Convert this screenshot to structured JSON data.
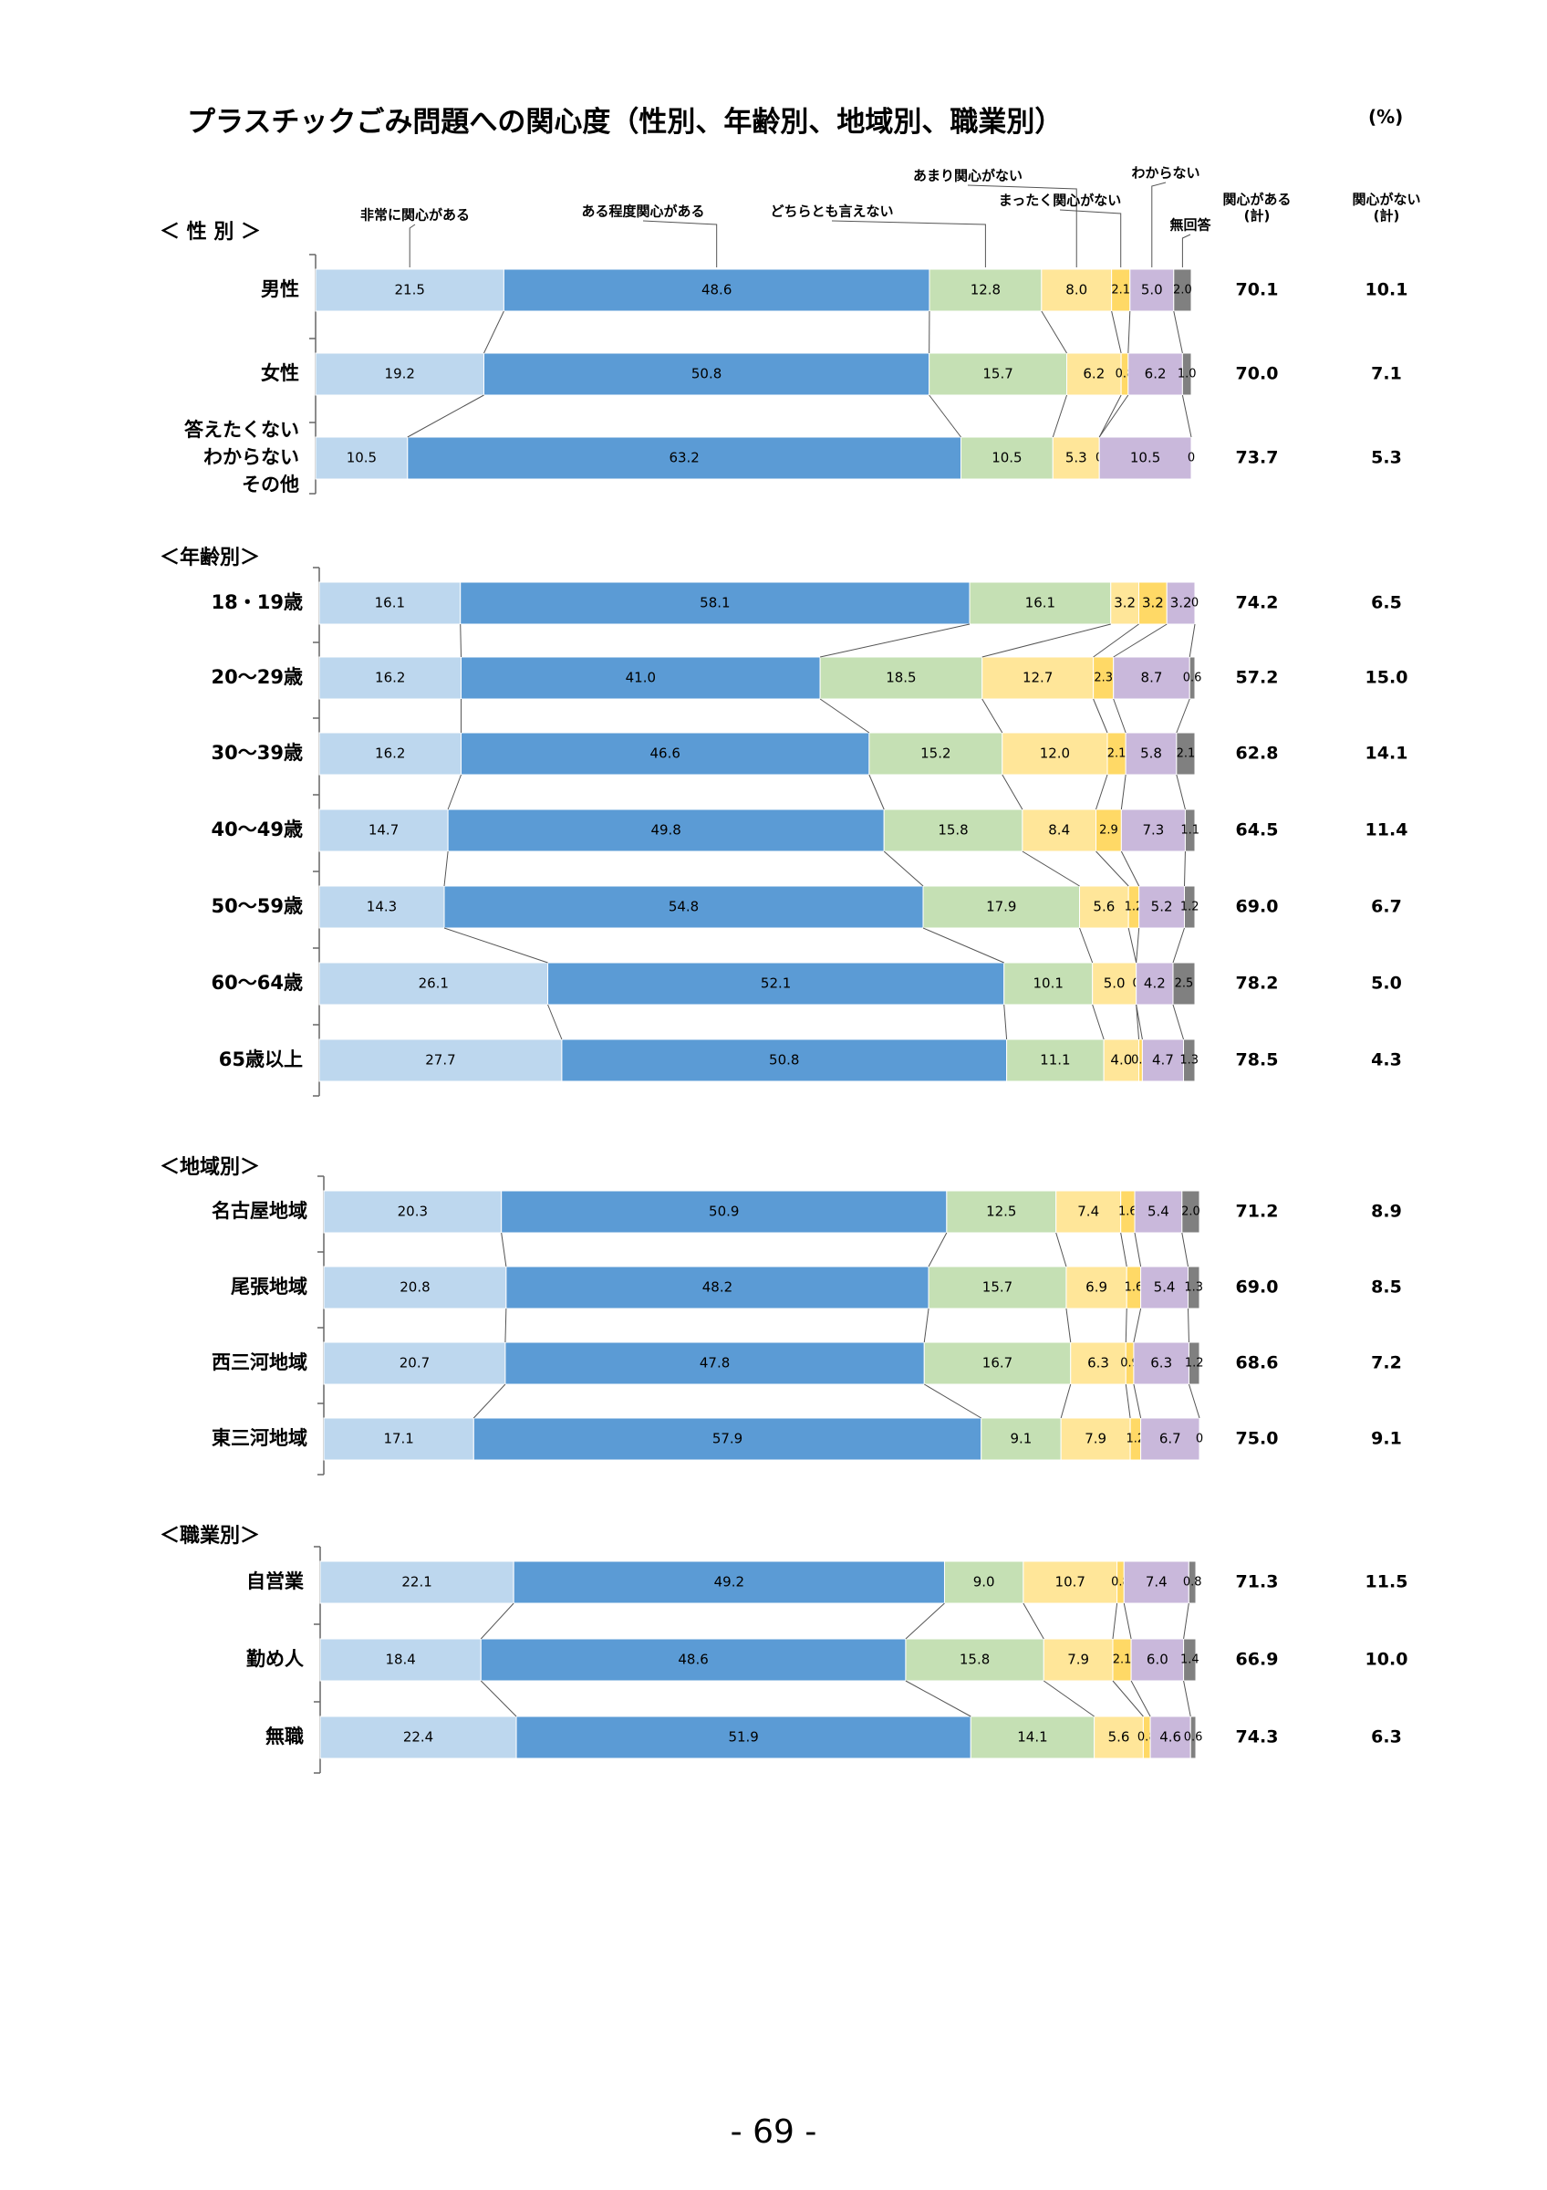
{
  "page": {
    "title": "プラスチックごみ問題への関心度（性別、年齢別、地域別、職業別）",
    "unit": "(%)",
    "page_number": "- 69 -"
  },
  "chart_data": {
    "type": "bar",
    "orientation": "horizontal",
    "stacked": true,
    "percent_scale": [
      0,
      100
    ],
    "categories_legend": [
      "非常に関心がある",
      "ある程度関心がある",
      "どちらとも言えない",
      "あまり関心がない",
      "まったく関心がない",
      "わからない",
      "無回答"
    ],
    "colors": [
      "#bdd7ee",
      "#5b9bd5",
      "#c5e0b4",
      "#ffe699",
      "#ffd966",
      "#c9b8db",
      "#808080"
    ],
    "summary_headers": [
      "関心がある\n(計)",
      "関心がない\n(計)"
    ],
    "groups": [
      {
        "name": "＜ 性 別 ＞",
        "rows": [
          {
            "label": "男性",
            "values": [
              21.5,
              48.6,
              12.8,
              8.0,
              2.1,
              5.0,
              2.0
            ],
            "labels": [
              "21.5",
              "48.6",
              "12.8",
              "8.0",
              "2.1",
              "5.0",
              "2.0"
            ],
            "interest": "70.1",
            "no_interest": "10.1"
          },
          {
            "label": "女性",
            "values": [
              19.2,
              50.8,
              15.7,
              6.2,
              0.8,
              6.2,
              1.0
            ],
            "labels": [
              "19.2",
              "50.8",
              "15.7",
              "6.2",
              "0.8",
              "6.2",
              "1.0"
            ],
            "interest": "70.0",
            "no_interest": "7.1"
          },
          {
            "label": "答えたくない\nわからない\nその他",
            "values": [
              10.5,
              63.2,
              10.5,
              5.3,
              0,
              10.5,
              0
            ],
            "labels": [
              "10.5",
              "63.2",
              "10.5",
              "5.3",
              "0",
              "10.5",
              "0"
            ],
            "interest": "73.7",
            "no_interest": "5.3"
          }
        ]
      },
      {
        "name": "＜年齢別＞",
        "rows": [
          {
            "label": "18・19歳",
            "values": [
              16.1,
              58.1,
              16.1,
              3.2,
              3.2,
              3.2,
              0
            ],
            "labels": [
              "16.1",
              "58.1",
              "16.1",
              "3.2",
              "3.2",
              "3.2",
              "0"
            ],
            "interest": "74.2",
            "no_interest": "6.5"
          },
          {
            "label": "20～29歳",
            "values": [
              16.2,
              41.0,
              18.5,
              12.7,
              2.3,
              8.7,
              0.6
            ],
            "labels": [
              "16.2",
              "41.0",
              "18.5",
              "12.7",
              "2.3",
              "8.7",
              "0.6"
            ],
            "interest": "57.2",
            "no_interest": "15.0"
          },
          {
            "label": "30～39歳",
            "values": [
              16.2,
              46.6,
              15.2,
              12.0,
              2.1,
              5.8,
              2.1
            ],
            "labels": [
              "16.2",
              "46.6",
              "15.2",
              "12.0",
              "2.1",
              "5.8",
              "2.1"
            ],
            "interest": "62.8",
            "no_interest": "14.1"
          },
          {
            "label": "40～49歳",
            "values": [
              14.7,
              49.8,
              15.8,
              8.4,
              2.9,
              7.3,
              1.1
            ],
            "labels": [
              "14.7",
              "49.8",
              "15.8",
              "8.4",
              "2.9",
              "7.3",
              "1.1"
            ],
            "interest": "64.5",
            "no_interest": "11.4"
          },
          {
            "label": "50～59歳",
            "values": [
              14.3,
              54.8,
              17.9,
              5.6,
              1.2,
              5.2,
              1.2
            ],
            "labels": [
              "14.3",
              "54.8",
              "17.9",
              "5.6",
              "1.2",
              "5.2",
              "1.2"
            ],
            "interest": "69.0",
            "no_interest": "6.7"
          },
          {
            "label": "60～64歳",
            "values": [
              26.1,
              52.1,
              10.1,
              5.0,
              0,
              4.2,
              2.5
            ],
            "labels": [
              "26.1",
              "52.1",
              "10.1",
              "5.0",
              "0",
              "4.2",
              "2.5"
            ],
            "interest": "78.2",
            "no_interest": "5.0"
          },
          {
            "label": "65歳以上",
            "values": [
              27.7,
              50.8,
              11.1,
              4.0,
              0.4,
              4.7,
              1.3
            ],
            "labels": [
              "27.7",
              "50.8",
              "11.1",
              "4.0",
              "0.4",
              "4.7",
              "1.3"
            ],
            "interest": "78.5",
            "no_interest": "4.3"
          }
        ]
      },
      {
        "name": "＜地域別＞",
        "rows": [
          {
            "label": "名古屋地域",
            "values": [
              20.3,
              50.9,
              12.5,
              7.4,
              1.6,
              5.4,
              2.0
            ],
            "labels": [
              "20.3",
              "50.9",
              "12.5",
              "7.4",
              "1.6",
              "5.4",
              "2.0"
            ],
            "interest": "71.2",
            "no_interest": "8.9"
          },
          {
            "label": "尾張地域",
            "values": [
              20.8,
              48.2,
              15.7,
              6.9,
              1.6,
              5.4,
              1.3
            ],
            "labels": [
              "20.8",
              "48.2",
              "15.7",
              "6.9",
              "1.6",
              "5.4",
              "1.3"
            ],
            "interest": "69.0",
            "no_interest": "8.5"
          },
          {
            "label": "西三河地域",
            "values": [
              20.7,
              47.8,
              16.7,
              6.3,
              0.9,
              6.3,
              1.2
            ],
            "labels": [
              "20.7",
              "47.8",
              "16.7",
              "6.3",
              "0.9",
              "6.3",
              "1.2"
            ],
            "interest": "68.6",
            "no_interest": "7.2"
          },
          {
            "label": "東三河地域",
            "values": [
              17.1,
              57.9,
              9.1,
              7.9,
              1.2,
              6.7,
              0
            ],
            "labels": [
              "17.1",
              "57.9",
              "9.1",
              "7.9",
              "1.2",
              "6.7",
              "0"
            ],
            "interest": "75.0",
            "no_interest": "9.1"
          }
        ]
      },
      {
        "name": "＜職業別＞",
        "rows": [
          {
            "label": "自営業",
            "values": [
              22.1,
              49.2,
              9.0,
              10.7,
              0.8,
              7.4,
              0.8
            ],
            "labels": [
              "22.1",
              "49.2",
              "9.0",
              "10.7",
              "0.8",
              "7.4",
              "0.8"
            ],
            "interest": "71.3",
            "no_interest": "11.5"
          },
          {
            "label": "勤め人",
            "values": [
              18.4,
              48.6,
              15.8,
              7.9,
              2.1,
              6.0,
              1.4
            ],
            "labels": [
              "18.4",
              "48.6",
              "15.8",
              "7.9",
              "2.1",
              "6.0",
              "1.4"
            ],
            "interest": "66.9",
            "no_interest": "10.0"
          },
          {
            "label": "無職",
            "values": [
              22.4,
              51.9,
              14.1,
              5.6,
              0.8,
              4.6,
              0.6
            ],
            "labels": [
              "22.4",
              "51.9",
              "14.1",
              "5.6",
              "0.8",
              "4.6",
              "0.6"
            ],
            "interest": "74.3",
            "no_interest": "6.3"
          }
        ]
      }
    ]
  }
}
